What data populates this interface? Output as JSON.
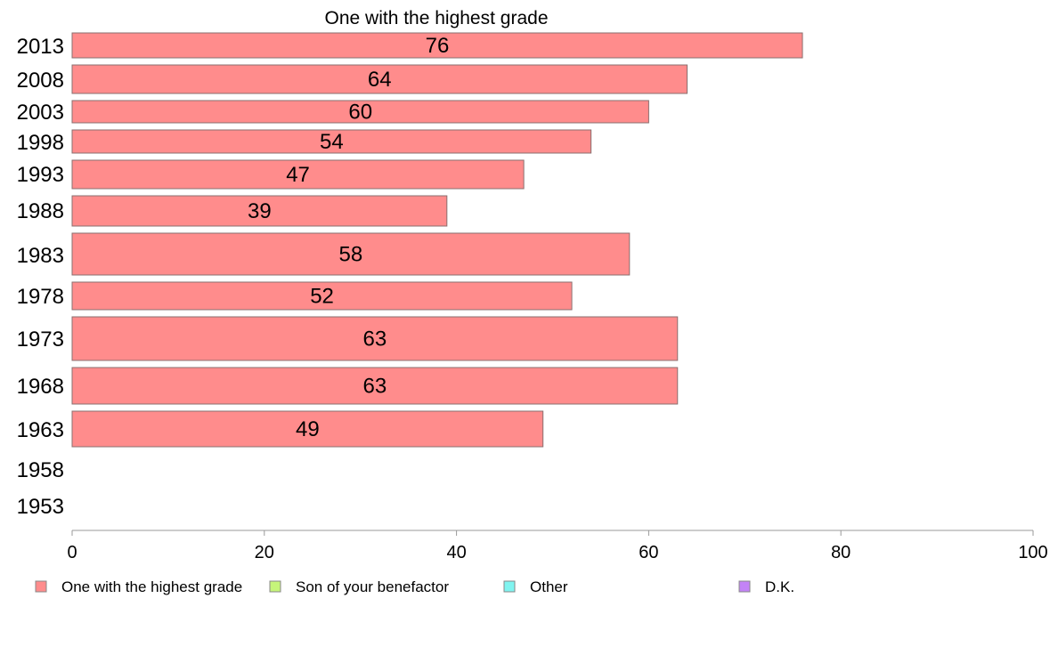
{
  "chart_data": {
    "type": "bar",
    "orientation": "horizontal",
    "title": "One with the highest grade",
    "categories": [
      "2013",
      "2008",
      "2003",
      "1998",
      "1993",
      "1988",
      "1983",
      "1978",
      "1973",
      "1968",
      "1963",
      "1958",
      "1953"
    ],
    "series": [
      {
        "name": "One with the highest grade",
        "color": "#ff8c8c",
        "values": [
          76,
          64,
          60,
          54,
          47,
          39,
          58,
          52,
          63,
          63,
          49,
          null,
          null
        ]
      },
      {
        "name": "Son of your benefactor",
        "color": "#c6f57a",
        "values": [
          null,
          null,
          null,
          null,
          null,
          null,
          null,
          null,
          null,
          null,
          null,
          null,
          null
        ]
      },
      {
        "name": "Other",
        "color": "#80f4f0",
        "values": [
          null,
          null,
          null,
          null,
          null,
          null,
          null,
          null,
          null,
          null,
          null,
          null,
          null
        ]
      },
      {
        "name": "D.K.",
        "color": "#c383f6",
        "values": [
          null,
          null,
          null,
          null,
          null,
          null,
          null,
          null,
          null,
          null,
          null,
          null,
          null
        ]
      }
    ],
    "data_labels": [
      "76",
      "64",
      "60",
      "54",
      "47",
      "39",
      "58",
      "52",
      "63",
      "63",
      "49",
      "",
      ""
    ],
    "xlim": [
      0,
      100
    ],
    "xticks": [
      "0",
      "20",
      "40",
      "60",
      "80",
      "100"
    ],
    "xlabel": "",
    "ylabel": "",
    "grid": false,
    "legend_position": "bottom"
  }
}
